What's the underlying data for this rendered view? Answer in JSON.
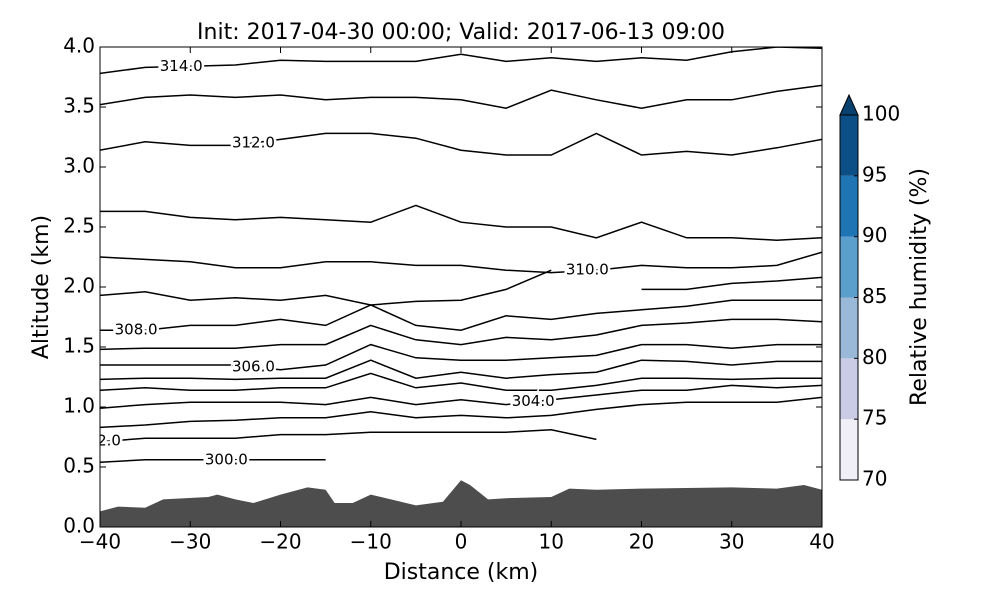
{
  "chart_data": {
    "type": "contour",
    "title": "Init: 2017-04-30 00:00; Valid: 2017-06-13 09:00",
    "xlabel": "Distance (km)",
    "ylabel": "Altitude (km)",
    "xlim": [
      -40,
      40
    ],
    "ylim": [
      0,
      4
    ],
    "xticks": [
      {
        "value": -40,
        "label": "−40"
      },
      {
        "value": -30,
        "label": "−30"
      },
      {
        "value": -20,
        "label": "−20"
      },
      {
        "value": -10,
        "label": "−10"
      },
      0,
      10,
      20,
      30,
      40
    ],
    "yticks": [
      {
        "value": 0,
        "label": "0.0"
      },
      0.5,
      {
        "value": 1,
        "label": "1.0"
      },
      1.5,
      {
        "value": 2,
        "label": "2.0"
      },
      2.5,
      {
        "value": 3,
        "label": "3.0"
      },
      3.5,
      {
        "value": 4,
        "label": "4.0"
      }
    ],
    "x": [
      -40,
      -35,
      -30,
      -25,
      -20,
      -15,
      -10,
      -5,
      0,
      5,
      10,
      15,
      20,
      25,
      30,
      35,
      40
    ],
    "contour_color": "#000000",
    "contours": [
      {
        "label": "314.0",
        "label_x": -31,
        "values": [
          3.78,
          3.83,
          3.84,
          3.85,
          3.89,
          3.88,
          3.88,
          3.88,
          3.94,
          3.88,
          3.91,
          3.88,
          3.91,
          3.89,
          3.96,
          4.0,
          3.99
        ]
      },
      {
        "values": [
          3.52,
          3.58,
          3.6,
          3.58,
          3.6,
          3.56,
          3.58,
          3.58,
          3.56,
          3.49,
          3.64,
          3.56,
          3.49,
          3.56,
          3.56,
          3.63,
          3.68
        ]
      },
      {
        "label": "312.0",
        "label_x": -23,
        "values": [
          3.14,
          3.21,
          3.18,
          3.18,
          3.23,
          3.28,
          3.28,
          3.24,
          3.14,
          3.1,
          3.1,
          3.28,
          3.1,
          3.13,
          3.1,
          3.16,
          3.23
        ]
      },
      {
        "values": [
          2.63,
          2.63,
          2.58,
          2.56,
          2.58,
          2.56,
          2.54,
          2.68,
          2.54,
          2.5,
          2.5,
          2.41,
          2.54,
          2.41,
          2.41,
          2.39,
          2.41
        ]
      },
      {
        "values": [
          2.25,
          2.23,
          2.21,
          2.16,
          2.16,
          2.21,
          2.21,
          2.18,
          2.18,
          2.14,
          2.12,
          2.14,
          2.18,
          2.16,
          2.16,
          2.18,
          2.29
        ]
      },
      {
        "label": "310.0",
        "label_x": 14,
        "values": [
          1.93,
          1.96,
          1.89,
          1.91,
          1.89,
          1.93,
          1.85,
          1.88,
          1.89,
          1.98,
          2.14,
          null,
          1.98,
          1.98,
          2.03,
          2.05,
          2.08
        ]
      },
      {
        "label": "308.0",
        "label_x": -36,
        "values": [
          1.64,
          1.64,
          1.68,
          1.68,
          1.73,
          1.68,
          1.85,
          1.68,
          1.64,
          1.76,
          1.73,
          1.78,
          1.81,
          1.84,
          1.89,
          1.89,
          1.89
        ]
      },
      {
        "values": [
          1.48,
          1.49,
          1.49,
          1.49,
          1.52,
          1.52,
          1.68,
          1.56,
          1.52,
          1.58,
          1.56,
          1.6,
          1.68,
          1.7,
          1.73,
          1.73,
          1.71
        ]
      },
      {
        "label": "306.0",
        "label_x": -23,
        "values": [
          1.35,
          1.35,
          1.35,
          1.35,
          1.31,
          1.35,
          1.52,
          1.41,
          1.39,
          1.39,
          1.41,
          1.43,
          1.52,
          1.52,
          1.49,
          1.52,
          1.52
        ]
      },
      {
        "values": [
          1.23,
          1.24,
          1.24,
          1.23,
          1.24,
          1.24,
          1.39,
          1.24,
          1.29,
          1.24,
          1.27,
          1.29,
          1.39,
          1.38,
          1.35,
          1.38,
          1.38
        ]
      },
      {
        "values": [
          1.14,
          1.16,
          1.14,
          1.14,
          1.16,
          1.16,
          1.28,
          1.16,
          1.2,
          1.14,
          1.14,
          1.18,
          1.24,
          1.24,
          1.23,
          1.24,
          1.24
        ]
      },
      {
        "label": "304.0",
        "label_x": 8,
        "values": [
          0.99,
          1.02,
          1.04,
          1.04,
          1.04,
          1.02,
          1.08,
          1.02,
          1.06,
          1.02,
          1.06,
          1.1,
          1.14,
          1.14,
          1.18,
          1.16,
          1.18
        ]
      },
      {
        "values": [
          0.83,
          0.85,
          0.88,
          0.89,
          0.91,
          0.91,
          0.96,
          0.91,
          0.93,
          0.91,
          0.93,
          0.98,
          1.02,
          1.04,
          1.04,
          1.04,
          1.08
        ]
      },
      {
        "label": "2.0",
        "label_x": -39,
        "values": [
          0.71,
          0.74,
          0.74,
          0.74,
          0.77,
          0.77,
          0.79,
          0.79,
          0.79,
          0.79,
          0.81,
          0.73,
          null,
          null,
          null,
          null,
          null
        ]
      },
      {
        "label": "300.0",
        "label_x": -26,
        "values": [
          0.54,
          0.56,
          0.56,
          0.56,
          0.56,
          0.56,
          null,
          null,
          null,
          null,
          null,
          null,
          null,
          null,
          null,
          null,
          null
        ]
      }
    ],
    "terrain": {
      "color": "#4d4d4d",
      "x": [
        -40,
        -38,
        -35,
        -33,
        -28,
        -27,
        -25,
        -23,
        -20,
        -17,
        -15,
        -14,
        -12,
        -10,
        -5,
        -2,
        0,
        1,
        3,
        5,
        10,
        12,
        15,
        20,
        30,
        35,
        38,
        40
      ],
      "values": [
        0.13,
        0.17,
        0.16,
        0.23,
        0.25,
        0.27,
        0.23,
        0.2,
        0.27,
        0.33,
        0.31,
        0.2,
        0.2,
        0.27,
        0.18,
        0.21,
        0.39,
        0.35,
        0.23,
        0.24,
        0.25,
        0.32,
        0.31,
        0.32,
        0.33,
        0.32,
        0.35,
        0.31
      ]
    },
    "colorbar": {
      "label": "Relative humidity (%)",
      "ticks": [
        70,
        75,
        80,
        85,
        90,
        95,
        100
      ],
      "colors": [
        "#f0eef6",
        "#c9cce4",
        "#9ab8d8",
        "#5b9fcd",
        "#1f74b4",
        "#0c4f86"
      ],
      "extend_color": "#08406e"
    }
  }
}
